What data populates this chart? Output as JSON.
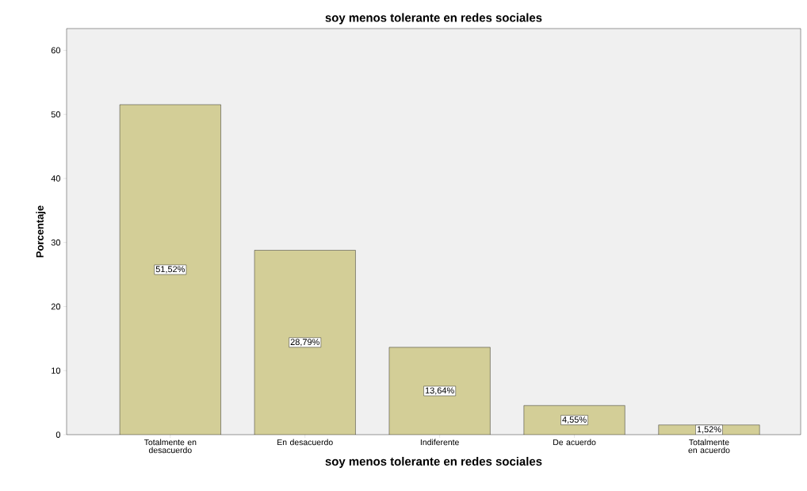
{
  "chart_data": {
    "type": "bar",
    "title": "soy menos tolerante en redes sociales",
    "xlabel": "soy menos tolerante en redes sociales",
    "ylabel": "Porcentaje",
    "categories": [
      "Totalmente en desacuerdo",
      "En desacuerdo",
      "Indiferente",
      "De acuerdo",
      "Totalmente en acuerdo"
    ],
    "values": [
      51.52,
      28.79,
      13.64,
      4.55,
      1.52
    ],
    "value_labels": [
      "51,52%",
      "28,79%",
      "13,64%",
      "4,55%",
      "1,52%"
    ],
    "color": "#d3ce97",
    "ylim": [
      0,
      63.4
    ],
    "yticks": [
      0,
      10,
      20,
      30,
      40,
      50,
      60
    ],
    "grid": false
  }
}
